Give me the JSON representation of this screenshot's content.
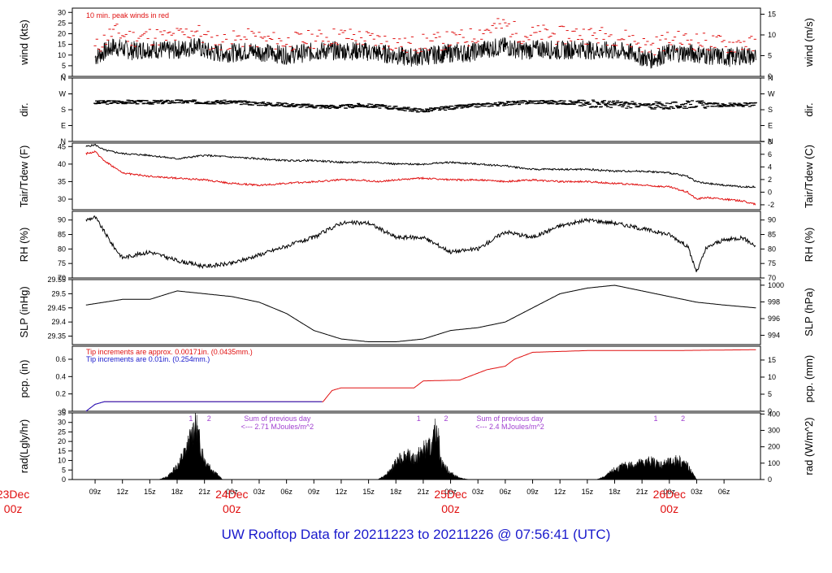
{
  "title": "UW Rooftop Data for 20211223  to  20211226 @ 07:56:41  (UTC)",
  "colors": {
    "primary": "#000000",
    "peak": "#e01010",
    "blue": "#1a1acc",
    "purple": "#a040d0",
    "date": "#e01010"
  },
  "chart_data": [
    {
      "type": "line",
      "id": "wind",
      "ylabel": "wind (kts)",
      "ylabel_right": "wind (m/s)",
      "annotation": "10 min. peak winds in red",
      "ylim": [
        0,
        32
      ],
      "yticks": [
        0,
        5,
        10,
        15,
        20,
        25,
        30
      ],
      "yticks_right": [
        {
          "v": 0,
          "label": "0"
        },
        {
          "v": 9.72,
          "label": "5"
        },
        {
          "v": 19.44,
          "label": "10"
        },
        {
          "v": 29.16,
          "label": "15"
        }
      ],
      "x_hours": [
        9,
        11,
        13,
        15,
        17,
        19,
        20,
        21,
        22,
        24,
        26,
        28,
        30,
        32,
        34,
        36,
        38,
        40,
        42,
        43,
        44,
        46,
        48,
        50,
        52,
        54,
        56,
        58,
        60,
        62,
        64,
        66,
        68,
        69,
        70,
        72,
        74,
        76,
        78,
        79,
        80,
        81.5
      ],
      "series": [
        {
          "name": "wind",
          "values": [
            9,
            14,
            12,
            13,
            12,
            13,
            15,
            12,
            11,
            11,
            12,
            11,
            10,
            11,
            12,
            12,
            12,
            11,
            10,
            9,
            9,
            10,
            11,
            11,
            13,
            14,
            12,
            13,
            12,
            13,
            12,
            12,
            11,
            9,
            8,
            11,
            11,
            10,
            9,
            9,
            10,
            9
          ]
        },
        {
          "name": "peak",
          "values": [
            13,
            21,
            18,
            19,
            18,
            20,
            22,
            18,
            16,
            17,
            18,
            17,
            16,
            17,
            18,
            19,
            18,
            17,
            16,
            14,
            15,
            16,
            17,
            18,
            22,
            24,
            19,
            20,
            19,
            20,
            19,
            19,
            17,
            15,
            14,
            17,
            17,
            16,
            15,
            15,
            16,
            14
          ]
        }
      ]
    },
    {
      "type": "scatter",
      "id": "dir",
      "ylabel": "dir.",
      "ylabel_right": "dir.",
      "ylim": [
        0,
        360
      ],
      "yticks": [
        {
          "v": 0,
          "label": "N"
        },
        {
          "v": 90,
          "label": "E"
        },
        {
          "v": 180,
          "label": "S"
        },
        {
          "v": 270,
          "label": "W"
        },
        {
          "v": 360,
          "label": "N"
        }
      ],
      "x_hours": [
        9,
        12,
        15,
        18,
        21,
        24,
        27,
        30,
        33,
        36,
        38,
        40,
        42,
        45,
        48,
        51,
        54,
        57,
        60,
        63,
        66,
        69,
        72,
        75,
        78,
        81.5
      ],
      "series": [
        {
          "name": "direction",
          "values": [
            220,
            225,
            222,
            226,
            224,
            223,
            215,
            208,
            200,
            196,
            205,
            200,
            190,
            175,
            192,
            205,
            215,
            225,
            222,
            215,
            212,
            205,
            202,
            212,
            205,
            210
          ]
        }
      ]
    },
    {
      "type": "line",
      "id": "temp",
      "ylabel": "Tair/Tdew (F)",
      "ylabel_right": "Tair/Tdew (C)",
      "ylim": [
        27,
        46
      ],
      "yticks": [
        30,
        35,
        40,
        45
      ],
      "yticks_right": [
        {
          "v": 28.4,
          "label": "-2"
        },
        {
          "v": 32,
          "label": "0"
        },
        {
          "v": 35.6,
          "label": "2"
        },
        {
          "v": 39.2,
          "label": "4"
        },
        {
          "v": 42.8,
          "label": "6"
        },
        {
          "v": 46.4,
          "label": "8"
        }
      ],
      "x_hours": [
        8,
        9,
        10,
        12,
        15,
        18,
        21,
        24,
        27,
        30,
        33,
        36,
        38,
        40,
        42,
        45,
        48,
        51,
        54,
        57,
        60,
        63,
        66,
        69,
        72,
        74,
        75,
        76,
        78,
        80,
        81.5
      ],
      "series": [
        {
          "name": "Tair",
          "values": [
            45,
            45.5,
            44,
            43,
            42.5,
            41.5,
            42.5,
            42,
            41.5,
            41,
            41,
            40.5,
            40.5,
            40.5,
            40,
            40,
            40.5,
            40,
            39.5,
            38.5,
            38.5,
            38.5,
            38,
            38,
            37.5,
            36.5,
            35,
            34.5,
            34,
            33.5,
            33.5
          ]
        },
        {
          "name": "Tdew",
          "values": [
            43,
            43.5,
            41,
            37.5,
            36.5,
            36,
            35.5,
            34.5,
            34,
            34.5,
            35,
            35.5,
            35.5,
            35,
            35.5,
            36,
            35.5,
            35.5,
            35,
            35.5,
            35,
            35,
            34.5,
            34,
            33.5,
            32,
            30,
            30.5,
            30,
            29.5,
            28.5
          ]
        }
      ]
    },
    {
      "type": "line",
      "id": "rh",
      "ylabel": "RH (%)",
      "ylabel_right": "RH (%)",
      "ylim": [
        70,
        93
      ],
      "yticks": [
        70,
        75,
        80,
        85,
        90
      ],
      "x_hours": [
        8,
        9,
        10,
        11,
        12,
        15,
        18,
        21,
        24,
        27,
        30,
        33,
        36,
        39,
        42,
        45,
        48,
        51,
        54,
        57,
        60,
        63,
        66,
        69,
        72,
        74,
        75,
        76,
        77,
        78,
        80,
        81.5
      ],
      "series": [
        {
          "name": "RH",
          "values": [
            90,
            91,
            86,
            81,
            77,
            79,
            76,
            74,
            75,
            78,
            81,
            84,
            89,
            89,
            84,
            84,
            79,
            80,
            86,
            84,
            88,
            90,
            89,
            87,
            85,
            81,
            72,
            80,
            82,
            83,
            84,
            81
          ]
        }
      ]
    },
    {
      "type": "line",
      "id": "slp",
      "ylabel": "SLP (inHg)",
      "ylabel_right": "SLP (hPa)",
      "ylim": [
        29.32,
        29.55
      ],
      "yticks": [
        29.35,
        29.4,
        29.45,
        29.5,
        29.55
      ],
      "yticks_right": [
        {
          "v": 29.353,
          "label": "994"
        },
        {
          "v": 29.412,
          "label": "996"
        },
        {
          "v": 29.4711,
          "label": "998"
        },
        {
          "v": 29.5302,
          "label": "1000"
        }
      ],
      "x_hours": [
        8,
        12,
        15,
        18,
        21,
        24,
        27,
        30,
        33,
        36,
        39,
        42,
        45,
        48,
        51,
        54,
        57,
        60,
        63,
        66,
        69,
        72,
        75,
        78,
        81.5
      ],
      "series": [
        {
          "name": "SLP",
          "values": [
            29.46,
            29.48,
            29.48,
            29.51,
            29.5,
            29.49,
            29.47,
            29.43,
            29.37,
            29.34,
            29.33,
            29.33,
            29.34,
            29.37,
            29.38,
            29.4,
            29.45,
            29.5,
            29.52,
            29.53,
            29.51,
            29.49,
            29.47,
            29.46,
            29.45
          ]
        }
      ]
    },
    {
      "type": "area",
      "id": "pcp",
      "ylabel": "pcp. (in)",
      "ylabel_right": "pcp. (mm)",
      "annotation_red": "Tip increments are approx. 0.00171in. (0.0435mm.)",
      "annotation_blue": "Tip increments are 0.01in. (0.254mm.)",
      "ylim": [
        0,
        0.75
      ],
      "yticks": [
        0,
        0.2,
        0.4,
        0.6
      ],
      "yticks_right": [
        {
          "v": 0,
          "label": "0"
        },
        {
          "v": 0.197,
          "label": "5"
        },
        {
          "v": 0.394,
          "label": "10"
        },
        {
          "v": 0.591,
          "label": "15"
        }
      ],
      "x_hours": [
        8,
        9,
        10,
        12,
        20,
        34,
        35,
        36,
        38,
        44,
        45,
        49,
        51,
        52,
        54,
        55,
        57,
        60,
        63,
        72,
        81.5
      ],
      "series": [
        {
          "name": "pcp-red",
          "values": [
            0,
            0.08,
            0.11,
            0.11,
            0.11,
            0.11,
            0.24,
            0.27,
            0.27,
            0.27,
            0.35,
            0.36,
            0.44,
            0.48,
            0.52,
            0.6,
            0.68,
            0.69,
            0.7,
            0.7,
            0.71
          ]
        },
        {
          "name": "pcp-blue",
          "values": [
            0,
            0.08,
            0.11,
            0.11,
            0.11,
            0.11
          ]
        }
      ]
    },
    {
      "type": "area",
      "id": "rad",
      "ylabel": "rad(Lgly/hr)",
      "ylabel_right": "rad (W/m^2)",
      "ylim": [
        0,
        35
      ],
      "yticks": [
        0,
        5,
        10,
        15,
        20,
        25,
        30,
        35
      ],
      "yticks_right": [
        {
          "v": 0,
          "label": "0"
        },
        {
          "v": 8.6,
          "label": "100"
        },
        {
          "v": 17.2,
          "label": "200"
        },
        {
          "v": 25.8,
          "label": "300"
        },
        {
          "v": 34.4,
          "label": "400"
        }
      ],
      "x_hours": [
        16,
        17,
        18,
        18.5,
        19,
        19.5,
        20,
        20.5,
        21,
        22,
        23,
        33,
        40,
        41,
        42,
        43,
        44,
        45,
        46,
        46.5,
        47,
        48,
        49,
        50,
        64,
        65,
        66,
        67,
        68,
        69,
        70,
        71,
        72,
        73,
        74,
        75
      ],
      "series": [
        {
          "name": "rad",
          "values": [
            0,
            2,
            8,
            13,
            18,
            25,
            35,
            22,
            12,
            5,
            0,
            0,
            0,
            3,
            10,
            15,
            12,
            18,
            20,
            33,
            10,
            4,
            1,
            0,
            0,
            2,
            6,
            8,
            9,
            10,
            11,
            9,
            10,
            12,
            8,
            0
          ]
        }
      ],
      "notes": [
        {
          "x": 19.5,
          "label": "1"
        },
        {
          "x": 21.5,
          "label": "2"
        },
        {
          "x": 44.5,
          "label": "1"
        },
        {
          "x": 47.5,
          "label": "2"
        },
        {
          "x": 70.5,
          "label": "1"
        },
        {
          "x": 73.5,
          "label": "2"
        }
      ],
      "summary": [
        {
          "x": 29,
          "line1": "Sum of previous day",
          "line2": "<--- 2.71 MJoules/m^2"
        },
        {
          "x": 54.5,
          "line1": "Sum of previous day",
          "line2": "<--- 2.4 MJoules/m^2"
        }
      ]
    }
  ],
  "x_axis": {
    "range_hours": [
      6.5,
      82.0
    ],
    "ticks": [
      {
        "h": 9,
        "label": "09z"
      },
      {
        "h": 12,
        "label": "12z"
      },
      {
        "h": 15,
        "label": "15z"
      },
      {
        "h": 18,
        "label": "18z"
      },
      {
        "h": 21,
        "label": "21z"
      },
      {
        "h": 24,
        "label": "00z"
      },
      {
        "h": 27,
        "label": "03z"
      },
      {
        "h": 30,
        "label": "06z"
      },
      {
        "h": 33,
        "label": "09z"
      },
      {
        "h": 36,
        "label": "12z"
      },
      {
        "h": 39,
        "label": "15z"
      },
      {
        "h": 42,
        "label": "18z"
      },
      {
        "h": 45,
        "label": "21z"
      },
      {
        "h": 48,
        "label": "00z"
      },
      {
        "h": 51,
        "label": "03z"
      },
      {
        "h": 54,
        "label": "06z"
      },
      {
        "h": 57,
        "label": "09z"
      },
      {
        "h": 60,
        "label": "12z"
      },
      {
        "h": 63,
        "label": "15z"
      },
      {
        "h": 66,
        "label": "18z"
      },
      {
        "h": 69,
        "label": "21z"
      },
      {
        "h": 72,
        "label": "00z"
      },
      {
        "h": 75,
        "label": "03z"
      },
      {
        "h": 78,
        "label": "06z"
      }
    ],
    "date_labels": [
      {
        "h": 0,
        "day": "23Dec",
        "hour": "00z"
      },
      {
        "h": 24,
        "day": "24Dec",
        "hour": "00z"
      },
      {
        "h": 48,
        "day": "25Dec",
        "hour": "00z"
      },
      {
        "h": 72,
        "day": "26Dec",
        "hour": "00z"
      }
    ]
  }
}
